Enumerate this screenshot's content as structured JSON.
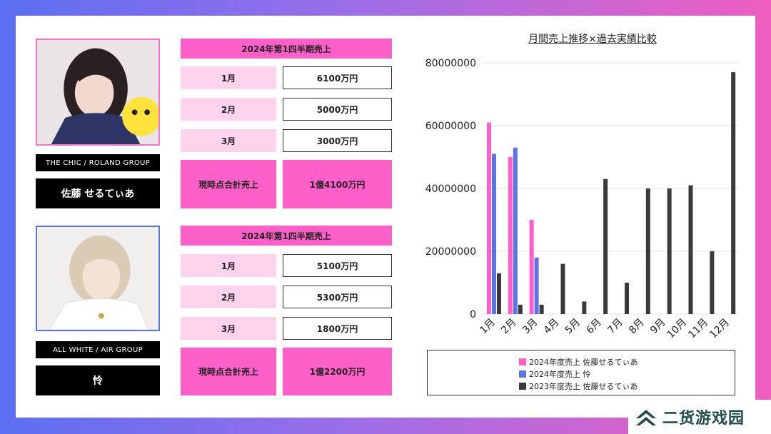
{
  "profiles": [
    {
      "group": "THE CHIC / ROLAND GROUP",
      "name": "佐藤 せるてぃあ",
      "border_color": "#ff6fc8",
      "table": {
        "header": "2024年第1四半期売上",
        "rows": [
          {
            "label": "1月",
            "value": "6100万円"
          },
          {
            "label": "2月",
            "value": "5000万円"
          },
          {
            "label": "3月",
            "value": "3000万円"
          }
        ],
        "total_label": "現時点合計売上",
        "total_value": "1億4100万円"
      }
    },
    {
      "group": "ALL WHITE / AIR GROUP",
      "name": "怜",
      "border_color": "#5b73e8",
      "table": {
        "header": "2024年第1四半期売上",
        "rows": [
          {
            "label": "1月",
            "value": "5100万円"
          },
          {
            "label": "2月",
            "value": "5300万円"
          },
          {
            "label": "3月",
            "value": "1800万円"
          }
        ],
        "total_label": "現時点合計売上",
        "total_value": "1億2200万円"
      }
    }
  ],
  "chart_data": {
    "type": "bar",
    "title": "月間売上推移×過去実績比較",
    "categories": [
      "1月",
      "2月",
      "3月",
      "4月",
      "5月",
      "6月",
      "7月",
      "8月",
      "9月",
      "10月",
      "11月",
      "12月"
    ],
    "ylim": [
      0,
      80000000
    ],
    "yticks": [
      "0",
      "20000000",
      "40000000",
      "60000000",
      "80000000"
    ],
    "grid": true,
    "legend_position": "bottom",
    "series": [
      {
        "name": "2024年度売上 佐藤せるてぃあ",
        "color": "#ff5fc8",
        "values": [
          61000000,
          50000000,
          30000000,
          null,
          null,
          null,
          null,
          null,
          null,
          null,
          null,
          null
        ]
      },
      {
        "name": "2024年度売上 怜",
        "color": "#5b73f2",
        "values": [
          51000000,
          53000000,
          18000000,
          null,
          null,
          null,
          null,
          null,
          null,
          null,
          null,
          null
        ]
      },
      {
        "name": "2023年度売上 佐藤せるてぃあ",
        "color": "#3a3a3a",
        "values": [
          13000000,
          3000000,
          3000000,
          16000000,
          4000000,
          43000000,
          10000000,
          40000000,
          40000000,
          41000000,
          20000000,
          77000000
        ]
      }
    ]
  },
  "watermark": {
    "text": "二货游戏园",
    "icon": "chevron-up-icon",
    "color": "#1f4d4a"
  }
}
